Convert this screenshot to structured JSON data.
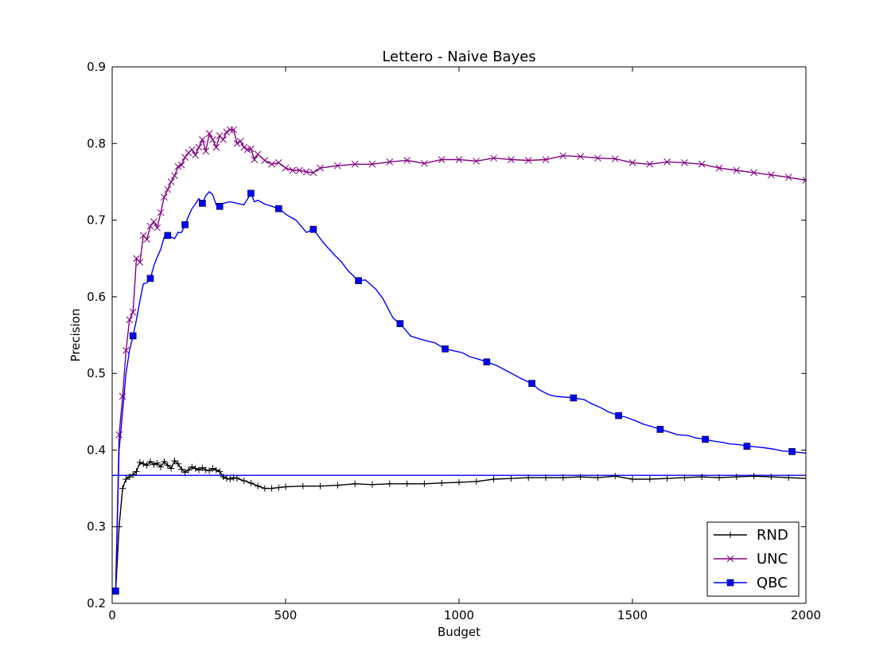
{
  "chart_data": {
    "type": "line",
    "title": "Lettero - Naive Bayes",
    "xlabel": "Budget",
    "ylabel": "Precision",
    "xlim": [
      0,
      2000
    ],
    "ylim": [
      0.2,
      0.9
    ],
    "xticks": [
      0,
      500,
      1000,
      1500,
      2000
    ],
    "xtick_labels": [
      "0",
      "500",
      "1000",
      "1500",
      "2000"
    ],
    "yticks": [
      0.2,
      0.3,
      0.4,
      0.5,
      0.6,
      0.7,
      0.8,
      0.9
    ],
    "ytick_labels": [
      "0.2",
      "0.3",
      "0.4",
      "0.5",
      "0.6",
      "0.7",
      "0.8",
      "0.9"
    ],
    "grid": false,
    "legend_position": "lower-right",
    "reference_line": {
      "y": 0.367,
      "color": "#0000ff"
    },
    "series": [
      {
        "name": "RND",
        "color": "#000000",
        "marker": "plus",
        "x": [
          10,
          20,
          30,
          40,
          50,
          60,
          70,
          80,
          90,
          100,
          110,
          120,
          130,
          140,
          150,
          160,
          170,
          180,
          190,
          200,
          210,
          220,
          230,
          240,
          250,
          260,
          270,
          280,
          290,
          300,
          310,
          320,
          330,
          340,
          350,
          360,
          380,
          400,
          420,
          440,
          460,
          480,
          500,
          550,
          600,
          650,
          700,
          750,
          800,
          850,
          900,
          950,
          1000,
          1050,
          1100,
          1150,
          1200,
          1250,
          1300,
          1350,
          1400,
          1450,
          1500,
          1550,
          1600,
          1650,
          1700,
          1750,
          1800,
          1850,
          1900,
          1950,
          2000
        ],
        "values": [
          0.216,
          0.3,
          0.35,
          0.362,
          0.365,
          0.368,
          0.372,
          0.384,
          0.382,
          0.38,
          0.385,
          0.381,
          0.383,
          0.378,
          0.385,
          0.38,
          0.376,
          0.386,
          0.382,
          0.375,
          0.371,
          0.374,
          0.378,
          0.376,
          0.374,
          0.377,
          0.374,
          0.373,
          0.376,
          0.374,
          0.372,
          0.365,
          0.363,
          0.362,
          0.364,
          0.363,
          0.36,
          0.357,
          0.353,
          0.35,
          0.35,
          0.351,
          0.352,
          0.353,
          0.353,
          0.354,
          0.356,
          0.355,
          0.356,
          0.356,
          0.356,
          0.357,
          0.358,
          0.359,
          0.362,
          0.363,
          0.364,
          0.364,
          0.364,
          0.365,
          0.364,
          0.366,
          0.362,
          0.362,
          0.363,
          0.364,
          0.365,
          0.364,
          0.365,
          0.366,
          0.365,
          0.364,
          0.363
        ],
        "marker_every": 1
      },
      {
        "name": "UNC",
        "color": "#800080",
        "marker": "x",
        "x": [
          10,
          20,
          30,
          40,
          50,
          60,
          70,
          80,
          90,
          100,
          110,
          120,
          130,
          140,
          150,
          160,
          170,
          180,
          190,
          200,
          210,
          220,
          230,
          240,
          250,
          260,
          270,
          280,
          290,
          300,
          310,
          320,
          330,
          340,
          350,
          360,
          370,
          380,
          390,
          400,
          410,
          420,
          440,
          460,
          480,
          500,
          520,
          540,
          560,
          580,
          600,
          650,
          700,
          750,
          800,
          850,
          900,
          950,
          1000,
          1050,
          1100,
          1150,
          1200,
          1250,
          1300,
          1350,
          1400,
          1450,
          1500,
          1550,
          1600,
          1650,
          1700,
          1750,
          1800,
          1850,
          1900,
          1950,
          2000
        ],
        "values": [
          0.216,
          0.42,
          0.47,
          0.53,
          0.57,
          0.58,
          0.65,
          0.645,
          0.68,
          0.675,
          0.692,
          0.698,
          0.69,
          0.71,
          0.73,
          0.74,
          0.75,
          0.758,
          0.77,
          0.772,
          0.782,
          0.788,
          0.792,
          0.785,
          0.795,
          0.805,
          0.79,
          0.813,
          0.805,
          0.795,
          0.81,
          0.805,
          0.815,
          0.818,
          0.818,
          0.8,
          0.803,
          0.795,
          0.792,
          0.793,
          0.779,
          0.786,
          0.778,
          0.773,
          0.775,
          0.768,
          0.765,
          0.765,
          0.763,
          0.762,
          0.768,
          0.771,
          0.773,
          0.773,
          0.776,
          0.778,
          0.774,
          0.779,
          0.779,
          0.777,
          0.781,
          0.779,
          0.778,
          0.779,
          0.784,
          0.783,
          0.781,
          0.78,
          0.775,
          0.773,
          0.776,
          0.775,
          0.773,
          0.768,
          0.765,
          0.762,
          0.759,
          0.756,
          0.752
        ],
        "marker_every": 1
      },
      {
        "name": "QBC",
        "color": "#0000ff",
        "marker": "square",
        "x": [
          10,
          20,
          30,
          40,
          50,
          60,
          70,
          80,
          90,
          100,
          110,
          120,
          130,
          140,
          150,
          160,
          170,
          180,
          190,
          200,
          210,
          220,
          230,
          240,
          250,
          260,
          270,
          280,
          290,
          300,
          310,
          320,
          340,
          360,
          380,
          400,
          410,
          420,
          440,
          460,
          480,
          500,
          510,
          530,
          560,
          580,
          610,
          640,
          660,
          680,
          710,
          730,
          760,
          780,
          810,
          830,
          860,
          880,
          910,
          930,
          960,
          980,
          1010,
          1030,
          1060,
          1080,
          1110,
          1130,
          1160,
          1180,
          1210,
          1230,
          1260,
          1280,
          1310,
          1330,
          1360,
          1380,
          1410,
          1430,
          1460,
          1480,
          1510,
          1530,
          1560,
          1580,
          1610,
          1630,
          1660,
          1680,
          1710,
          1730,
          1760,
          1780,
          1810,
          1830,
          1860,
          1880,
          1910,
          1930,
          1960,
          1980,
          2000
        ],
        "values": [
          0.216,
          0.4,
          0.45,
          0.5,
          0.53,
          0.549,
          0.57,
          0.595,
          0.617,
          0.618,
          0.624,
          0.64,
          0.652,
          0.662,
          0.678,
          0.68,
          0.678,
          0.676,
          0.684,
          0.684,
          0.694,
          0.705,
          0.715,
          0.721,
          0.728,
          0.722,
          0.732,
          0.737,
          0.733,
          0.72,
          0.718,
          0.722,
          0.724,
          0.722,
          0.72,
          0.735,
          0.724,
          0.726,
          0.721,
          0.718,
          0.715,
          0.708,
          0.705,
          0.7,
          0.684,
          0.688,
          0.67,
          0.655,
          0.646,
          0.634,
          0.621,
          0.622,
          0.61,
          0.598,
          0.572,
          0.565,
          0.549,
          0.546,
          0.542,
          0.54,
          0.532,
          0.53,
          0.527,
          0.522,
          0.518,
          0.515,
          0.51,
          0.505,
          0.498,
          0.493,
          0.487,
          0.479,
          0.472,
          0.47,
          0.469,
          0.468,
          0.466,
          0.461,
          0.455,
          0.45,
          0.445,
          0.443,
          0.438,
          0.434,
          0.43,
          0.427,
          0.423,
          0.42,
          0.419,
          0.416,
          0.414,
          0.412,
          0.41,
          0.408,
          0.407,
          0.405,
          0.404,
          0.403,
          0.401,
          0.399,
          0.398,
          0.397,
          0.396
        ],
        "marker_every": 5
      }
    ]
  }
}
